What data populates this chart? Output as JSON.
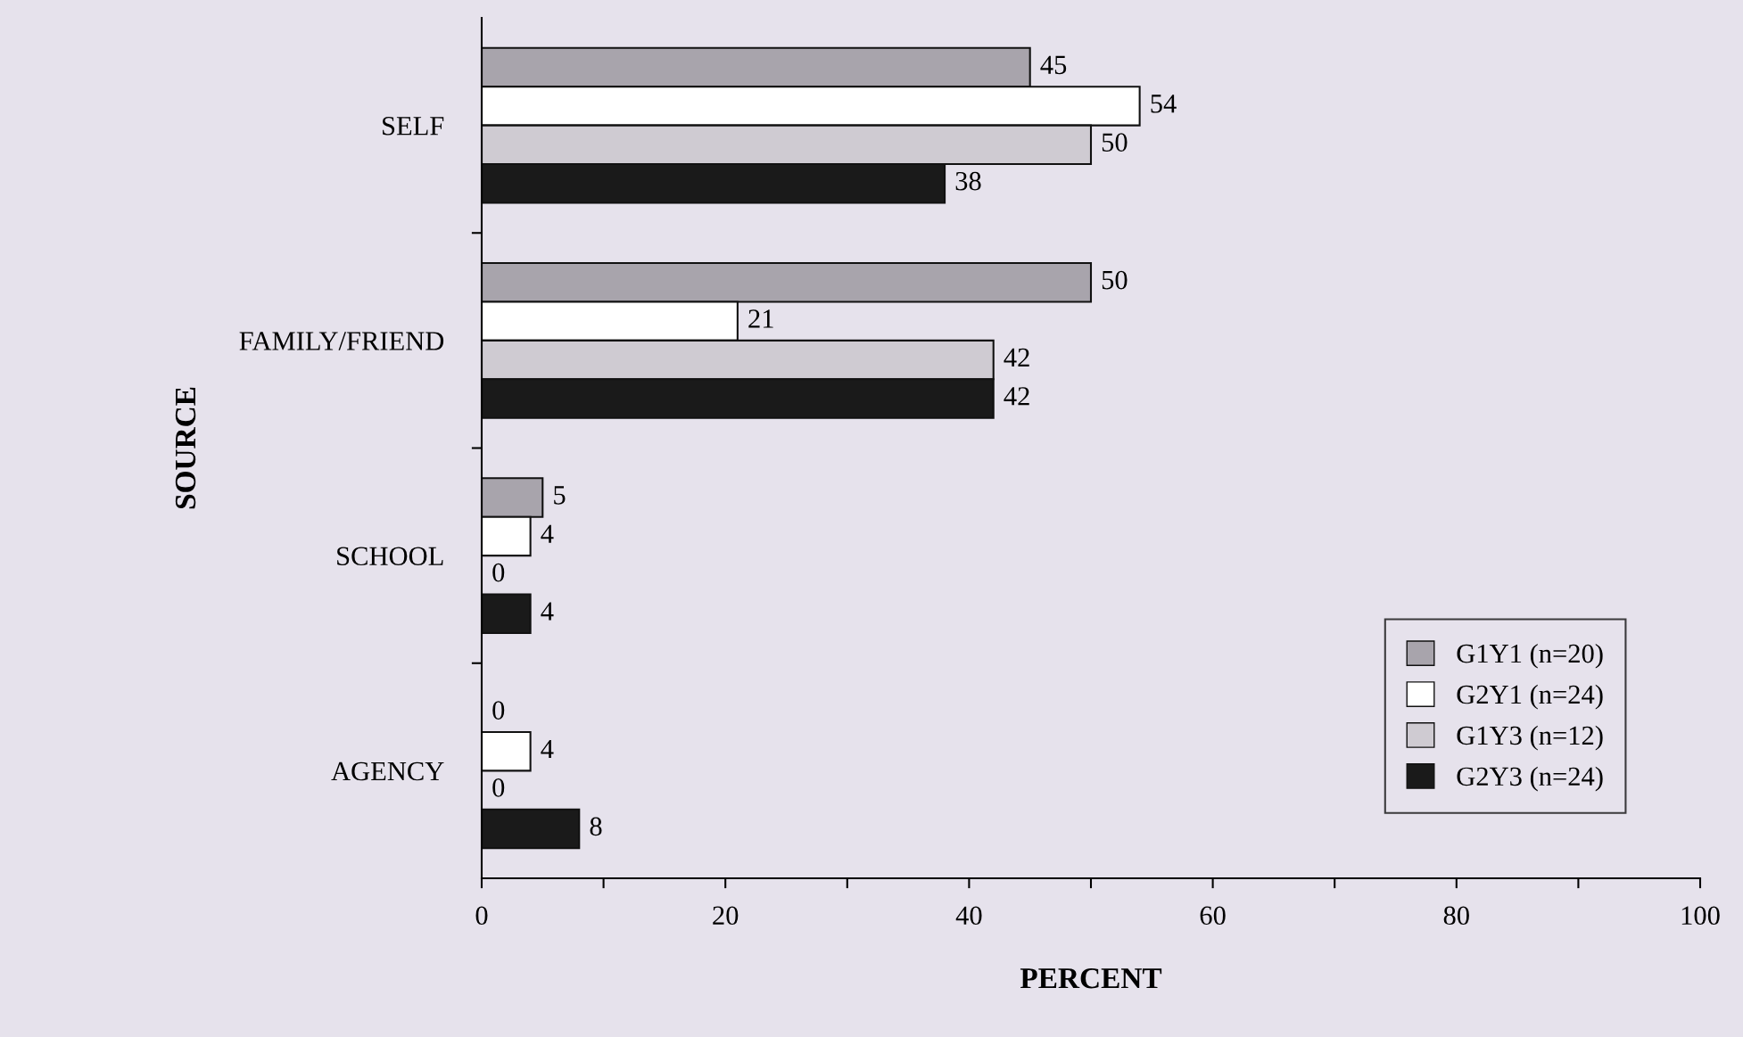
{
  "chart_data": {
    "type": "bar",
    "orientation": "horizontal",
    "xlabel": "PERCENT",
    "ylabel": "SOURCE",
    "categories": [
      "SELF",
      "FAMILY/FRIEND",
      "SCHOOL",
      "AGENCY"
    ],
    "series": [
      {
        "name": "G1Y1 (n=20)",
        "color": "#a8a4ac",
        "values": [
          45,
          50,
          5,
          0
        ]
      },
      {
        "name": "G2Y1 (n=24)",
        "color": "#ffffff",
        "values": [
          54,
          21,
          4,
          4
        ]
      },
      {
        "name": "G1Y3 (n=12)",
        "color": "#cfcbd2",
        "values": [
          50,
          42,
          0,
          0
        ]
      },
      {
        "name": "G2Y3 (n=24)",
        "color": "#1a1a1a",
        "values": [
          38,
          42,
          4,
          8
        ]
      }
    ],
    "xlim": [
      0,
      100
    ],
    "xticks": [
      0,
      {
        "value": 10,
        "label": null
      },
      20,
      {
        "value": 30,
        "label": null
      },
      40,
      {
        "value": 50,
        "label": null
      },
      60,
      {
        "value": 70,
        "label": null
      },
      80,
      {
        "value": 90,
        "label": null
      },
      100
    ],
    "data_labels": true,
    "legend": "bottom right",
    "grid": false
  }
}
